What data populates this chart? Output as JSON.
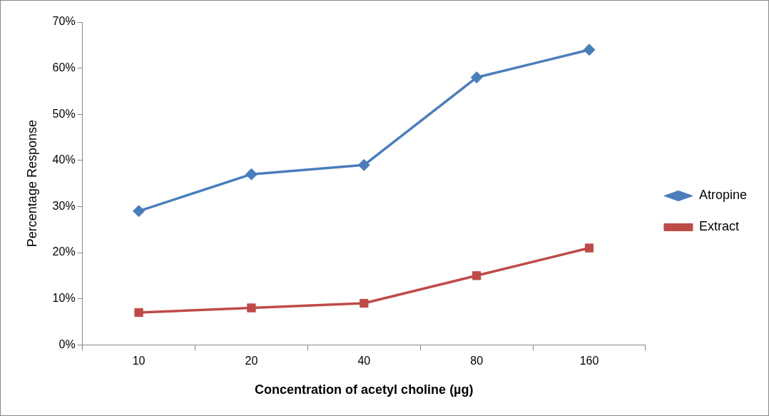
{
  "chart_data": {
    "type": "line",
    "xlabel": "Concentration of acetyl choline (µg)",
    "ylabel": "Percentage Response",
    "categories": [
      "10",
      "20",
      "40",
      "80",
      "160"
    ],
    "series": [
      {
        "name": "Atropine",
        "color": "#4a7ebb",
        "marker": "diamond",
        "values": [
          29,
          37,
          39,
          58,
          64
        ]
      },
      {
        "name": "Extract",
        "color": "#be4b48",
        "marker": "square",
        "values": [
          7,
          8,
          9,
          15,
          21
        ]
      }
    ],
    "ylim": [
      0,
      70
    ],
    "yticks": [
      {
        "value": 0,
        "label": "0%"
      },
      {
        "value": 10,
        "label": "10%"
      },
      {
        "value": 20,
        "label": "20%"
      },
      {
        "value": 30,
        "label": "30%"
      },
      {
        "value": 40,
        "label": "40%"
      },
      {
        "value": 50,
        "label": "50%"
      },
      {
        "value": 60,
        "label": "60%"
      },
      {
        "value": 70,
        "label": "70%"
      }
    ],
    "grid": false,
    "legend": "right",
    "line_style": "solid"
  }
}
